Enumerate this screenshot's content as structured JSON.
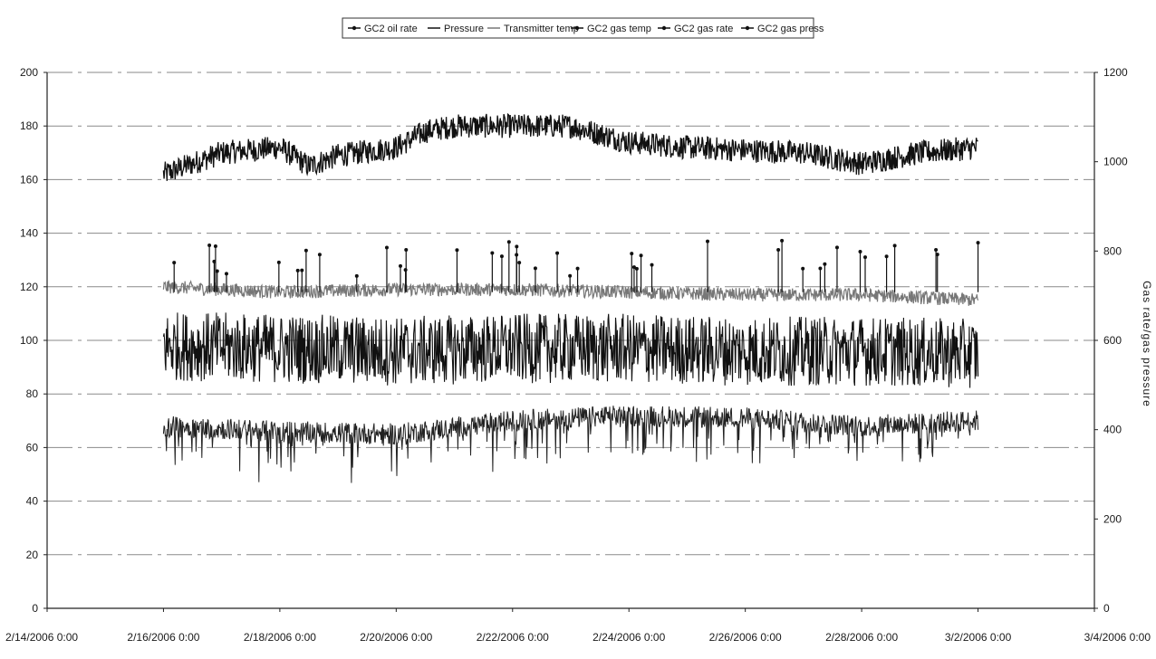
{
  "chart_data": {
    "type": "line",
    "title": "",
    "legend": {
      "placement": "top",
      "entries": [
        "GC2 oil rate",
        "Pressure",
        "Transmitter temp",
        "GC2 gas temp",
        "GC2 gas rate",
        "GC2 gas press"
      ]
    },
    "x_axis": {
      "label": "",
      "ticks": [
        "2/14/2006 0:00",
        "2/16/2006 0:00",
        "2/18/2006 0:00",
        "2/20/2006 0:00",
        "2/22/2006 0:00",
        "2/24/2006 0:00",
        "2/26/2006 0:00",
        "2/28/2006 0:00",
        "3/2/2006 0:00",
        "3/4/2006 0:00"
      ],
      "range": [
        "2/14/2006 0:00",
        "3/4/2006 0:00"
      ]
    },
    "y_axis_left": {
      "label": "",
      "range": [
        0,
        200
      ],
      "ticks": [
        "0",
        "20",
        "40",
        "60",
        "80",
        "100",
        "120",
        "140",
        "160",
        "180",
        "200"
      ]
    },
    "y_axis_right": {
      "label": "Gas rate/gas pressure",
      "range": [
        0,
        1200
      ],
      "ticks": [
        "0",
        "200",
        "400",
        "600",
        "800",
        "1000",
        "1200"
      ]
    },
    "grid": true,
    "data_start": "2/16/2006 0:00",
    "data_end": "3/2/2006 0:00",
    "series": [
      {
        "name": "GC2 gas temp",
        "x": [
          "2/16/2006 0:00",
          "2/17/2006 0:00",
          "2/18/2006 0:00",
          "2/18/2006 12:00",
          "2/19/2006 0:00",
          "2/20/2006 0:00",
          "2/20/2006 12:00",
          "2/21/2006 0:00",
          "2/22/2006 0:00",
          "2/23/2006 0:00",
          "2/24/2006 0:00",
          "2/25/2006 0:00",
          "2/26/2006 0:00",
          "2/27/2006 0:00",
          "2/28/2006 0:00",
          "3/1/2006 0:00",
          "3/2/2006 0:00"
        ],
        "y": [
          162,
          170,
          172,
          165,
          169,
          172,
          178,
          180,
          180,
          180,
          174,
          172,
          171,
          170,
          166,
          170,
          172
        ]
      },
      {
        "name": "Transmitter temp",
        "x": [
          "2/16/2006 0:00",
          "2/18/2006 0:00",
          "2/20/2006 0:00",
          "2/22/2006 0:00",
          "2/24/2006 0:00",
          "2/26/2006 0:00",
          "2/28/2006 0:00",
          "3/2/2006 0:00"
        ],
        "y": [
          120,
          118,
          119,
          119,
          118,
          117,
          117,
          115
        ]
      },
      {
        "name": "GC2 oil rate",
        "x": [
          "2/16/2006 0:00",
          "2/18/2006 0:00",
          "2/20/2006 0:00",
          "2/22/2006 0:00",
          "2/24/2006 0:00",
          "2/26/2006 0:00",
          "2/28/2006 0:00",
          "3/2/2006 0:00"
        ],
        "y": [
          98,
          97,
          96,
          97,
          97,
          96,
          96,
          95
        ]
      },
      {
        "name": "Pressure",
        "x": [
          "2/16/2006 0:00",
          "2/18/2006 0:00",
          "2/20/2006 0:00",
          "2/22/2006 0:00",
          "2/24/2006 0:00",
          "2/26/2006 0:00",
          "2/28/2006 0:00",
          "3/2/2006 0:00"
        ],
        "y": [
          68,
          66,
          65,
          70,
          72,
          71,
          68,
          70
        ]
      }
    ]
  }
}
